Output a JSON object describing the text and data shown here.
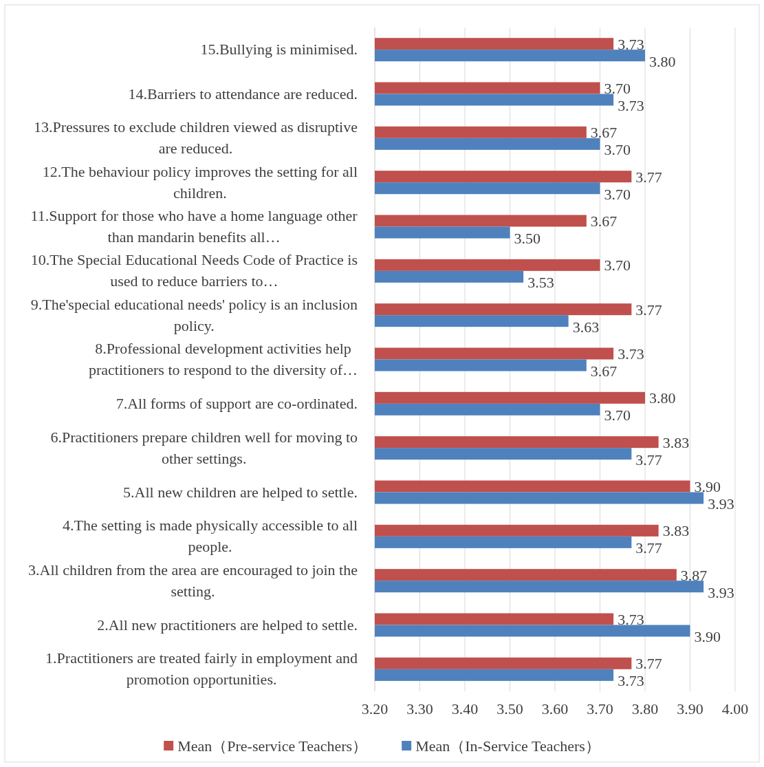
{
  "chart_data": {
    "type": "bar",
    "orientation": "horizontal",
    "categories": [
      "15.Bullying is minimised.",
      "14.Barriers to attendance are reduced.",
      "13.Pressures to exclude children viewed as disruptive are reduced.",
      "12.The behaviour policy improves the setting for all children.",
      "11.Support for those who have a home language other than mandarin benefits all…",
      "10.The Special Educational Needs Code of Practice is used to reduce barriers to…",
      "9.The'special educational needs' policy is an inclusion policy.",
      "8.Professional development activities help practitioners to respond to the diversity of…",
      "7.All forms of support are co-ordinated.",
      "6.Practitioners prepare children well for moving to other settings.",
      "5.All new children are helped to settle.",
      "4.The setting is made physically accessible to all people.",
      "3.All children from the area are encouraged to join the setting.",
      "2.All new practitioners are helped to settle.",
      "1.Practitioners are treated fairly in employment and promotion opportunities."
    ],
    "series": [
      {
        "name": "Mean（Pre-service Teachers）",
        "color": "#c0504d",
        "values": [
          3.73,
          3.7,
          3.67,
          3.77,
          3.67,
          3.7,
          3.77,
          3.73,
          3.8,
          3.83,
          3.9,
          3.83,
          3.87,
          3.73,
          3.77
        ],
        "value_labels": [
          "3.73",
          "3.70",
          "3.67",
          "3.77",
          "3.67",
          "3.70",
          "3.77",
          "3.73",
          "3.80",
          "3.83",
          "3.90",
          "3.83",
          "3.87",
          "3.73",
          "3.77"
        ]
      },
      {
        "name": "Mean（In-Service Teachers）",
        "color": "#4f81bd",
        "values": [
          3.8,
          3.73,
          3.7,
          3.7,
          3.5,
          3.53,
          3.63,
          3.67,
          3.7,
          3.77,
          3.93,
          3.77,
          3.93,
          3.9,
          3.73
        ],
        "value_labels": [
          "3.80",
          "3.73",
          "3.70",
          "3.70",
          "3.50",
          "3.53",
          "3.63",
          "3.67",
          "3.70",
          "3.77",
          "3.93",
          "3.77",
          "3.93",
          "3.90",
          "3.73"
        ]
      }
    ],
    "xlim": [
      3.2,
      4.0
    ],
    "xticks": [
      {
        "value": 3.2,
        "label": "3.20"
      },
      {
        "value": 3.3,
        "label": "3.30"
      },
      {
        "value": 3.4,
        "label": "3.40"
      },
      {
        "value": 3.5,
        "label": "3.50"
      },
      {
        "value": 3.6,
        "label": "3.60"
      },
      {
        "value": 3.7,
        "label": "3.70"
      },
      {
        "value": 3.8,
        "label": "3.80"
      },
      {
        "value": 3.9,
        "label": "3.90"
      },
      {
        "value": 4.0,
        "label": "4.00"
      }
    ],
    "grid": "x",
    "legend": "bottom"
  }
}
